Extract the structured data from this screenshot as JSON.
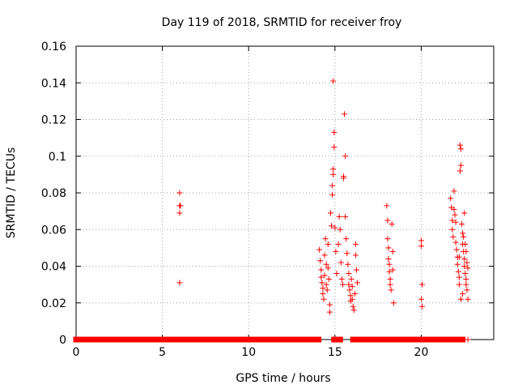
{
  "chart_data": {
    "type": "scatter",
    "title": "Day 119 of 2018, SRMTID for receiver froy",
    "xlabel": "GPS time / hours",
    "ylabel": "SRMTID / TECUs",
    "xlim": [
      0,
      24.2
    ],
    "ylim": [
      0,
      0.16
    ],
    "xticks": [
      0,
      5,
      10,
      15,
      20
    ],
    "xtick_labels": [
      "0",
      "5",
      "10",
      "15",
      "20"
    ],
    "yticks": [
      0,
      0.02,
      0.04,
      0.06,
      0.08,
      0.1,
      0.12,
      0.14,
      0.16
    ],
    "ytick_labels": [
      "0",
      "0.02",
      "0.04",
      "0.06",
      "0.08",
      "0.1",
      "0.12",
      "0.14",
      "0.16"
    ],
    "grid": true,
    "marker": "+",
    "color": "#ff0000",
    "series": [
      {
        "name": "SRMTID",
        "points": [
          [
            6.0,
            0.08
          ],
          [
            6.0,
            0.073
          ],
          [
            6.05,
            0.073
          ],
          [
            6.0,
            0.069
          ],
          [
            6.0,
            0.031
          ],
          [
            14.1,
            0.049
          ],
          [
            14.15,
            0.043
          ],
          [
            14.2,
            0.038
          ],
          [
            14.2,
            0.034
          ],
          [
            14.25,
            0.031
          ],
          [
            14.3,
            0.028
          ],
          [
            14.3,
            0.025
          ],
          [
            14.35,
            0.022
          ],
          [
            14.4,
            0.046
          ],
          [
            14.4,
            0.035
          ],
          [
            14.45,
            0.055
          ],
          [
            14.5,
            0.041
          ],
          [
            14.5,
            0.03
          ],
          [
            14.55,
            0.027
          ],
          [
            14.6,
            0.052
          ],
          [
            14.6,
            0.039
          ],
          [
            14.65,
            0.033
          ],
          [
            14.7,
            0.019
          ],
          [
            14.7,
            0.015
          ],
          [
            14.75,
            0.069
          ],
          [
            14.8,
            0.062
          ],
          [
            14.85,
            0.079
          ],
          [
            14.85,
            0.084
          ],
          [
            14.9,
            0.09
          ],
          [
            14.9,
            0.093
          ],
          [
            14.95,
            0.105
          ],
          [
            14.95,
            0.113
          ],
          [
            14.9,
            0.141
          ],
          [
            15.0,
            0.061
          ],
          [
            15.05,
            0.048
          ],
          [
            15.1,
            0.036
          ],
          [
            15.2,
            0.052
          ],
          [
            15.25,
            0.067
          ],
          [
            15.3,
            0.06
          ],
          [
            15.35,
            0.042
          ],
          [
            15.4,
            0.033
          ],
          [
            15.45,
            0.03
          ],
          [
            15.5,
            0.088
          ],
          [
            15.5,
            0.089
          ],
          [
            15.55,
            0.123
          ],
          [
            15.6,
            0.1
          ],
          [
            15.6,
            0.067
          ],
          [
            15.65,
            0.055
          ],
          [
            15.7,
            0.047
          ],
          [
            15.75,
            0.041
          ],
          [
            15.8,
            0.036
          ],
          [
            15.8,
            0.03
          ],
          [
            15.85,
            0.027
          ],
          [
            15.9,
            0.024
          ],
          [
            15.9,
            0.021
          ],
          [
            15.95,
            0.033
          ],
          [
            16.0,
            0.029
          ],
          [
            16.0,
            0.022
          ],
          [
            16.05,
            0.018
          ],
          [
            16.1,
            0.016
          ],
          [
            16.15,
            0.025
          ],
          [
            16.2,
            0.046
          ],
          [
            16.2,
            0.052
          ],
          [
            16.25,
            0.038
          ],
          [
            16.3,
            0.031
          ],
          [
            18.0,
            0.073
          ],
          [
            18.05,
            0.065
          ],
          [
            18.05,
            0.055
          ],
          [
            18.1,
            0.05
          ],
          [
            18.1,
            0.044
          ],
          [
            18.15,
            0.041
          ],
          [
            18.15,
            0.037
          ],
          [
            18.2,
            0.033
          ],
          [
            18.2,
            0.03
          ],
          [
            18.25,
            0.027
          ],
          [
            18.3,
            0.063
          ],
          [
            18.35,
            0.048
          ],
          [
            18.35,
            0.038
          ],
          [
            18.4,
            0.02
          ],
          [
            20.0,
            0.054
          ],
          [
            20.0,
            0.051
          ],
          [
            20.05,
            0.03
          ],
          [
            20.0,
            0.022
          ],
          [
            20.05,
            0.018
          ],
          [
            21.7,
            0.077
          ],
          [
            21.75,
            0.072
          ],
          [
            21.8,
            0.065
          ],
          [
            21.8,
            0.06
          ],
          [
            21.85,
            0.056
          ],
          [
            21.9,
            0.081
          ],
          [
            21.9,
            0.071
          ],
          [
            21.95,
            0.068
          ],
          [
            22.0,
            0.064
          ],
          [
            22.0,
            0.053
          ],
          [
            22.05,
            0.049
          ],
          [
            22.1,
            0.045
          ],
          [
            22.1,
            0.041
          ],
          [
            22.15,
            0.037
          ],
          [
            22.2,
            0.034
          ],
          [
            22.2,
            0.03
          ],
          [
            22.25,
            0.106
          ],
          [
            22.3,
            0.104
          ],
          [
            22.3,
            0.095
          ],
          [
            22.25,
            0.092
          ],
          [
            22.35,
            0.063
          ],
          [
            22.4,
            0.058
          ],
          [
            22.4,
            0.052
          ],
          [
            22.45,
            0.048
          ],
          [
            22.5,
            0.044
          ],
          [
            22.5,
            0.04
          ],
          [
            22.55,
            0.036
          ],
          [
            22.6,
            0.033
          ],
          [
            22.6,
            0.03
          ],
          [
            22.65,
            0.027
          ],
          [
            22.5,
            0.069
          ],
          [
            22.55,
            0.052
          ],
          [
            22.6,
            0.048
          ],
          [
            22.3,
            0.022
          ],
          [
            22.4,
            0.025
          ],
          [
            22.7,
            0.039
          ],
          [
            22.65,
            0.042
          ],
          [
            22.45,
            0.056
          ],
          [
            22.2,
            0.045
          ],
          [
            22.7,
            0.022
          ]
        ],
        "zero_segments": [
          [
            0.0,
            14.05
          ],
          [
            14.95,
            15.3
          ],
          [
            16.05,
            22.4
          ]
        ],
        "zero_isolated": [
          22.7
        ]
      }
    ]
  }
}
